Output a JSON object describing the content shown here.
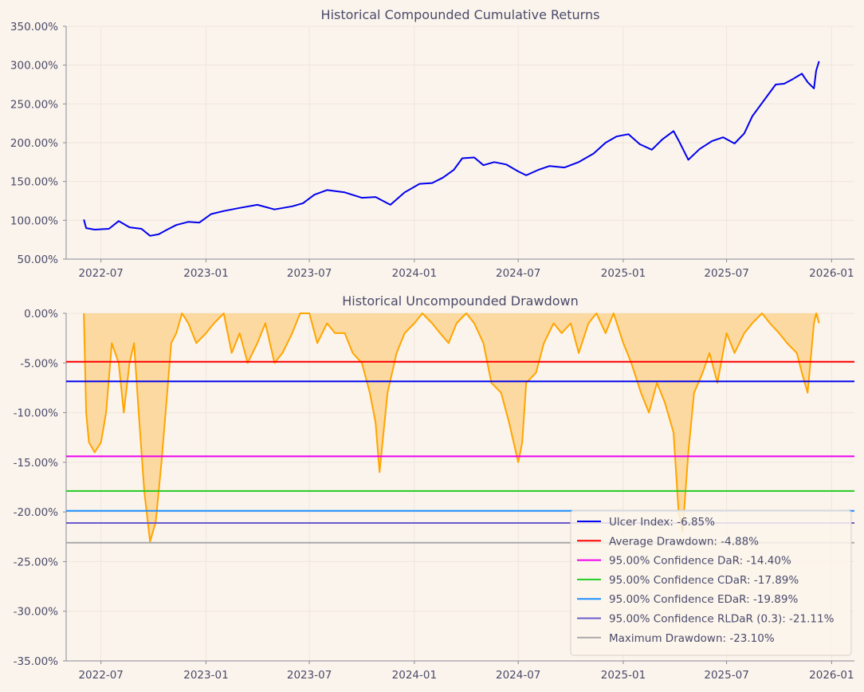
{
  "chart_data": [
    {
      "type": "line",
      "title": "Historical Compounded Cumulative Returns",
      "x_tick_labels": [
        "2022-07",
        "2023-01",
        "2023-07",
        "2024-01",
        "2024-07",
        "2025-01",
        "2025-07",
        "2026-01"
      ],
      "y_tick_labels": [
        "50.00%",
        "100.00%",
        "150.00%",
        "200.00%",
        "250.00%",
        "300.00%",
        "350.00%"
      ],
      "ylim": [
        50,
        350
      ],
      "x_range": [
        "2022-05-01",
        "2026-02-10"
      ],
      "grid": true,
      "series": [
        {
          "color": "#0000ee",
          "x": [
            "2022-06-01",
            "2022-06-05",
            "2022-06-20",
            "2022-07-15",
            "2022-08-01",
            "2022-08-20",
            "2022-09-10",
            "2022-09-25",
            "2022-10-10",
            "2022-10-25",
            "2022-11-10",
            "2022-12-01",
            "2022-12-20",
            "2023-01-10",
            "2023-02-01",
            "2023-03-01",
            "2023-04-01",
            "2023-05-01",
            "2023-06-01",
            "2023-06-20",
            "2023-07-10",
            "2023-08-01",
            "2023-09-01",
            "2023-10-01",
            "2023-10-25",
            "2023-11-20",
            "2023-12-15",
            "2024-01-10",
            "2024-02-01",
            "2024-02-20",
            "2024-03-10",
            "2024-03-25",
            "2024-04-15",
            "2024-05-01",
            "2024-05-20",
            "2024-06-10",
            "2024-07-01",
            "2024-07-15",
            "2024-08-05",
            "2024-08-25",
            "2024-09-20",
            "2024-10-15",
            "2024-11-10",
            "2024-12-01",
            "2024-12-20",
            "2025-01-10",
            "2025-01-30",
            "2025-02-20",
            "2025-03-10",
            "2025-03-30",
            "2025-04-08",
            "2025-04-25",
            "2025-05-15",
            "2025-06-05",
            "2025-06-25",
            "2025-07-15",
            "2025-08-01",
            "2025-08-15",
            "2025-09-05",
            "2025-09-25",
            "2025-10-10",
            "2025-10-25",
            "2025-11-10",
            "2025-11-20",
            "2025-12-01",
            "2025-12-05",
            "2025-12-10"
          ],
          "y": [
            101,
            90,
            88,
            89,
            99,
            91,
            89,
            80,
            82,
            88,
            94,
            98,
            97,
            108,
            112,
            116,
            120,
            114,
            118,
            122,
            133,
            139,
            136,
            129,
            130,
            120,
            136,
            147,
            148,
            155,
            165,
            180,
            181,
            171,
            175,
            172,
            163,
            158,
            165,
            170,
            168,
            175,
            186,
            200,
            208,
            211,
            198,
            191,
            204,
            215,
            203,
            178,
            192,
            202,
            207,
            199,
            212,
            234,
            255,
            275,
            276,
            282,
            289,
            278,
            270,
            293,
            305
          ]
        }
      ]
    },
    {
      "type": "area",
      "title": "Historical Uncompounded Drawdown",
      "x_tick_labels": [
        "2022-07",
        "2023-01",
        "2023-07",
        "2024-01",
        "2024-07",
        "2025-01",
        "2025-07",
        "2026-01"
      ],
      "y_tick_labels": [
        "0.00%",
        "-5.00%",
        "-10.00%",
        "-15.00%",
        "-20.00%",
        "-25.00%",
        "-30.00%",
        "-35.00%"
      ],
      "ylim": [
        -35,
        0
      ],
      "x_range": [
        "2022-05-01",
        "2026-02-10"
      ],
      "grid": true,
      "series": [
        {
          "color": "#ffa500",
          "fill": "#fcd9a0",
          "x": [
            "2022-06-01",
            "2022-06-05",
            "2022-06-10",
            "2022-06-20",
            "2022-07-01",
            "2022-07-10",
            "2022-07-20",
            "2022-08-01",
            "2022-08-10",
            "2022-08-20",
            "2022-08-28",
            "2022-09-05",
            "2022-09-15",
            "2022-09-25",
            "2022-10-05",
            "2022-10-15",
            "2022-10-25",
            "2022-11-01",
            "2022-11-10",
            "2022-11-20",
            "2022-12-01",
            "2022-12-15",
            "2023-01-01",
            "2023-01-15",
            "2023-02-01",
            "2023-02-15",
            "2023-03-01",
            "2023-03-15",
            "2023-04-01",
            "2023-04-15",
            "2023-05-01",
            "2023-05-15",
            "2023-06-01",
            "2023-06-15",
            "2023-07-01",
            "2023-07-15",
            "2023-08-01",
            "2023-08-15",
            "2023-09-01",
            "2023-09-15",
            "2023-10-01",
            "2023-10-15",
            "2023-10-25",
            "2023-11-01",
            "2023-11-15",
            "2023-12-01",
            "2023-12-15",
            "2024-01-01",
            "2024-01-15",
            "2024-02-01",
            "2024-02-15",
            "2024-03-01",
            "2024-03-15",
            "2024-04-01",
            "2024-04-15",
            "2024-05-01",
            "2024-05-15",
            "2024-06-01",
            "2024-06-15",
            "2024-07-01",
            "2024-07-08",
            "2024-07-15",
            "2024-08-01",
            "2024-08-15",
            "2024-09-01",
            "2024-09-15",
            "2024-10-01",
            "2024-10-15",
            "2024-11-01",
            "2024-11-15",
            "2024-12-01",
            "2024-12-15",
            "2025-01-01",
            "2025-01-15",
            "2025-02-01",
            "2025-02-15",
            "2025-03-01",
            "2025-03-15",
            "2025-03-30",
            "2025-04-08",
            "2025-04-15",
            "2025-04-25",
            "2025-05-05",
            "2025-05-20",
            "2025-06-01",
            "2025-06-15",
            "2025-07-01",
            "2025-07-15",
            "2025-08-01",
            "2025-08-15",
            "2025-09-01",
            "2025-09-15",
            "2025-10-01",
            "2025-10-15",
            "2025-11-01",
            "2025-11-10",
            "2025-11-20",
            "2025-12-01",
            "2025-12-05",
            "2025-12-10"
          ],
          "y": [
            0,
            -10,
            -13,
            -14,
            -13,
            -10,
            -3,
            -5,
            -10,
            -5,
            -3,
            -10,
            -18,
            -23,
            -21,
            -15,
            -8,
            -3,
            -2,
            0,
            -1,
            -3,
            -2,
            -1,
            0,
            -4,
            -2,
            -5,
            -3,
            -1,
            -5,
            -4,
            -2,
            0,
            0,
            -3,
            -1,
            -2,
            -2,
            -4,
            -5,
            -8,
            -11,
            -16,
            -8,
            -4,
            -2,
            -1,
            0,
            -1,
            -2,
            -3,
            -1,
            0,
            -1,
            -3,
            -7,
            -8,
            -11,
            -15,
            -13,
            -7,
            -6,
            -3,
            -1,
            -2,
            -1,
            -4,
            -1,
            0,
            -2,
            0,
            -3,
            -5,
            -8,
            -10,
            -7,
            -9,
            -12,
            -20,
            -22,
            -14,
            -8,
            -6,
            -4,
            -7,
            -2,
            -4,
            -2,
            -1,
            0,
            -1,
            -2,
            -3,
            -4,
            -6,
            -8,
            -1,
            0,
            -1
          ]
        }
      ],
      "legend": {
        "placement": "lower-right",
        "entries": [
          {
            "label": "Ulcer Index: -6.85%",
            "color": "#0000ee",
            "value": -6.85
          },
          {
            "label": "Average Drawdown: -4.88%",
            "color": "#ff0000",
            "value": -4.88
          },
          {
            "label": "95.00% Confidence DaR: -14.40%",
            "color": "#ee00ee",
            "value": -14.4
          },
          {
            "label": "95.00% Confidence CDaR: -17.89%",
            "color": "#22cc22",
            "value": -17.89
          },
          {
            "label": "95.00% Confidence EDaR: -19.89%",
            "color": "#1e90ff",
            "value": -19.89
          },
          {
            "label": "95.00% Confidence RLDaR (0.3): -21.11%",
            "color": "#6a5acd",
            "value": -21.11
          },
          {
            "label": "Maximum Drawdown: -23.10%",
            "color": "#a9a9a9",
            "value": -23.1
          }
        ]
      }
    }
  ]
}
